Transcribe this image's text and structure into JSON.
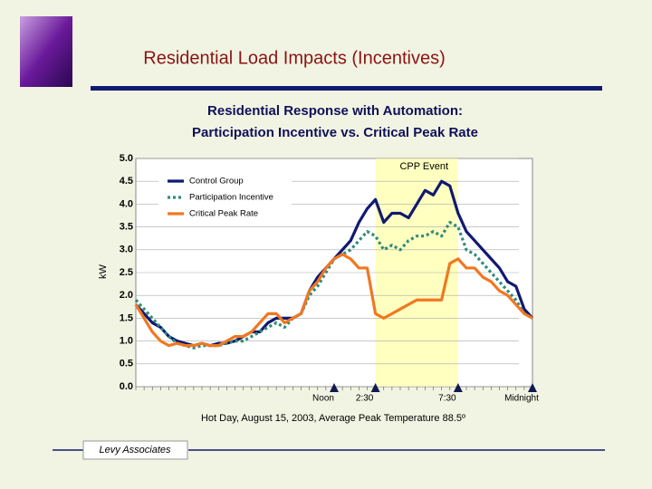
{
  "header": {
    "title": "Residential Load Impacts (Incentives)"
  },
  "footer": {
    "label": "Levy Associates"
  },
  "chart_data": {
    "type": "line",
    "title": "Residential Response with Automation:",
    "subtitle": "Participation Incentive vs.  Critical Peak Rate",
    "ylabel": "kW",
    "xlabel": "Hot Day, August 15, 2003, Average Peak Temperature 88.5º",
    "x": [
      0,
      0.5,
      1,
      1.5,
      2,
      2.5,
      3,
      3.5,
      4,
      4.5,
      5,
      5.5,
      6,
      6.5,
      7,
      7.5,
      8,
      8.5,
      9,
      9.5,
      10,
      10.5,
      11,
      11.5,
      12,
      12.5,
      13,
      13.5,
      14,
      14.5,
      15,
      15.5,
      16,
      16.5,
      17,
      17.5,
      18,
      18.5,
      19,
      19.5,
      20,
      20.5,
      21,
      21.5,
      22,
      22.5,
      23,
      23.5,
      24
    ],
    "xlim": [
      0,
      24
    ],
    "xticks": [
      {
        "value": 12,
        "label": "Noon"
      },
      {
        "value": 14.5,
        "label": "2:30"
      },
      {
        "value": 19.5,
        "label": "7:30"
      },
      {
        "value": 24,
        "label": "Midnight"
      }
    ],
    "ylim": [
      0,
      5
    ],
    "yticks": [
      {
        "value": 0,
        "label": "0.0"
      },
      0.5,
      {
        "value": 1,
        "label": "1.0"
      },
      1.5,
      {
        "value": 2,
        "label": "2.0"
      },
      2.5,
      {
        "value": 3,
        "label": "3.0"
      },
      3.5,
      {
        "value": 4,
        "label": "4.0"
      },
      4.5,
      {
        "value": 5,
        "label": "5.0"
      }
    ],
    "grid": true,
    "legend": "upper left",
    "event": {
      "label": "CPP Event",
      "start": 14.5,
      "end": 19.5,
      "color": "#ffffc0"
    },
    "series": [
      {
        "name": "Control Group",
        "color": "#101a70",
        "style": "solid",
        "values": [
          1.8,
          1.6,
          1.4,
          1.3,
          1.1,
          1.0,
          0.95,
          0.9,
          0.95,
          0.9,
          0.95,
          0.95,
          1.0,
          1.1,
          1.2,
          1.2,
          1.4,
          1.5,
          1.5,
          1.5,
          1.6,
          2.1,
          2.4,
          2.6,
          2.8,
          3.0,
          3.2,
          3.6,
          3.9,
          4.1,
          3.6,
          3.8,
          3.8,
          3.7,
          4.0,
          4.3,
          4.2,
          4.5,
          4.4,
          3.8,
          3.4,
          3.2,
          3.0,
          2.8,
          2.6,
          2.3,
          2.2,
          1.7,
          1.5
        ]
      },
      {
        "name": "Participation Incentive",
        "color": "#2e8b7a",
        "style": "dotted",
        "values": [
          1.9,
          1.7,
          1.5,
          1.3,
          1.1,
          0.95,
          0.9,
          0.85,
          0.9,
          0.9,
          0.9,
          0.95,
          1.0,
          1.0,
          1.1,
          1.2,
          1.3,
          1.4,
          1.3,
          1.5,
          1.6,
          2.0,
          2.2,
          2.5,
          2.8,
          2.9,
          3.0,
          3.2,
          3.4,
          3.3,
          3.0,
          3.1,
          3.0,
          3.2,
          3.3,
          3.3,
          3.4,
          3.3,
          3.6,
          3.5,
          3.0,
          2.9,
          2.7,
          2.5,
          2.3,
          2.1,
          1.9,
          1.6,
          1.5
        ]
      },
      {
        "name": "Critical Peak Rate",
        "color": "#f07820",
        "style": "solid",
        "values": [
          1.8,
          1.5,
          1.2,
          1.0,
          0.9,
          0.95,
          0.9,
          0.9,
          0.95,
          0.9,
          0.9,
          1.0,
          1.1,
          1.1,
          1.2,
          1.4,
          1.6,
          1.6,
          1.4,
          1.5,
          1.6,
          2.1,
          2.3,
          2.6,
          2.8,
          2.9,
          2.8,
          2.6,
          2.6,
          1.6,
          1.5,
          1.6,
          1.7,
          1.8,
          1.9,
          1.9,
          1.9,
          1.9,
          2.7,
          2.8,
          2.6,
          2.6,
          2.4,
          2.3,
          2.1,
          2.0,
          1.8,
          1.6,
          1.5
        ]
      }
    ]
  }
}
